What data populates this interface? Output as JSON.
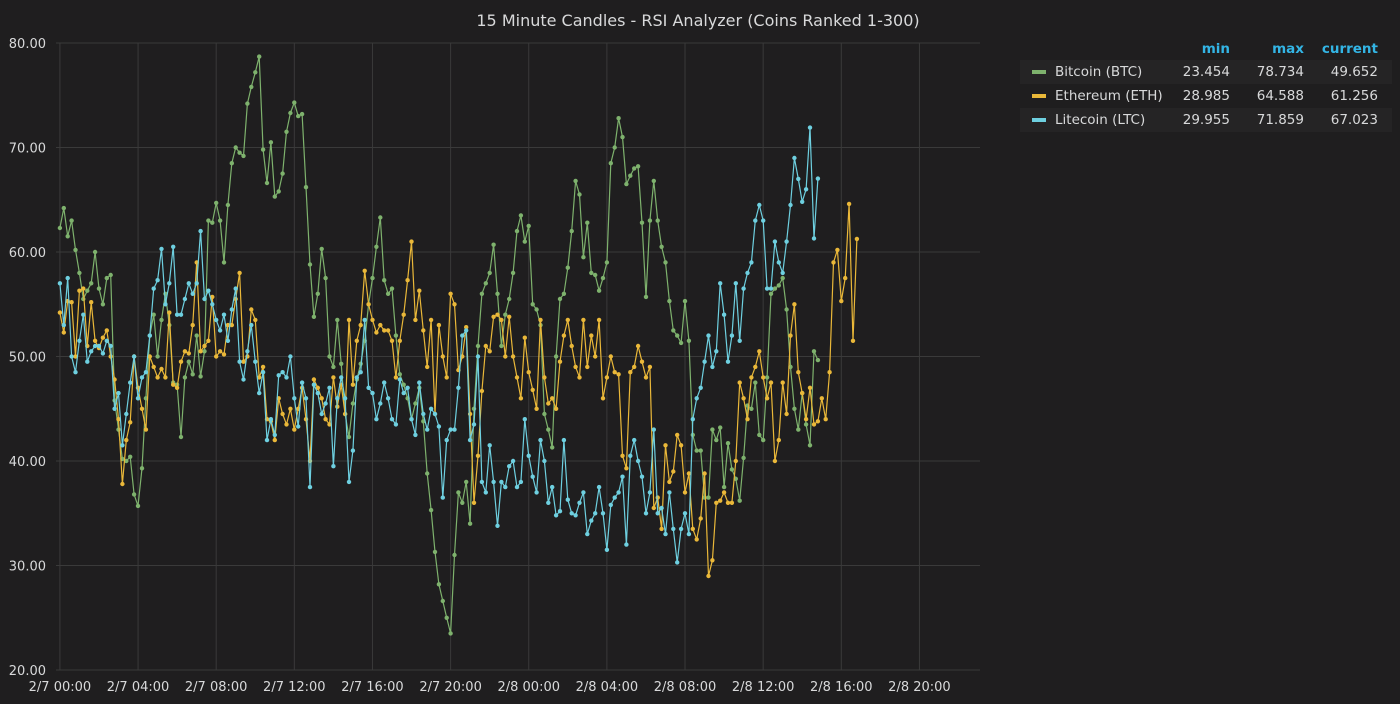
{
  "chart_data": {
    "type": "line",
    "title": "15 Minute Candles - RSI Analyzer (Coins Ranked 1-300)",
    "xlabel": "",
    "ylabel": "",
    "ylim": [
      20,
      80
    ],
    "y_ticks": [
      "20.00",
      "30.00",
      "40.00",
      "50.00",
      "60.00",
      "70.00",
      "80.00"
    ],
    "y_tick_values": [
      20,
      30,
      40,
      50,
      60,
      70,
      80
    ],
    "x_range_hours": [
      -0.2,
      47.1
    ],
    "x_ticks": [
      "2/7 00:00",
      "2/7 04:00",
      "2/7 08:00",
      "2/7 12:00",
      "2/7 16:00",
      "2/7 20:00",
      "2/8 00:00",
      "2/8 04:00",
      "2/8 08:00",
      "2/8 12:00",
      "2/8 16:00",
      "2/8 20:00"
    ],
    "x_tick_hours": [
      0,
      4,
      8,
      12,
      16,
      20,
      24,
      28,
      32,
      36,
      40,
      44
    ],
    "x_step_hours": 0.2,
    "grid": true,
    "legend_position": "right",
    "legend_headers": {
      "min": "min",
      "max": "max",
      "current": "current"
    },
    "series": [
      {
        "name": "Bitcoin (BTC)",
        "color": "#7eb26d",
        "min": "23.454",
        "max": "78.734",
        "current": "49.652",
        "values": [
          62.3,
          64.2,
          61.5,
          63.0,
          60.2,
          58.0,
          55.5,
          56.3,
          57.0,
          60.0,
          56.5,
          55.0,
          57.5,
          57.8,
          45.8,
          43.0,
          40.2,
          40.0,
          40.4,
          36.8,
          35.7,
          39.3,
          46.0,
          52.0,
          54.0,
          50.0,
          53.5,
          56.0,
          53.0,
          47.5,
          47.3,
          42.3,
          48.0,
          49.5,
          48.3,
          52.0,
          48.1,
          50.5,
          63.0,
          62.8,
          64.7,
          63.0,
          59.0,
          64.5,
          68.5,
          70.0,
          69.5,
          69.2,
          74.2,
          75.8,
          77.2,
          78.7,
          69.8,
          66.6,
          70.5,
          65.3,
          65.8,
          67.5,
          71.5,
          73.3,
          74.3,
          73.0,
          73.2,
          66.2,
          58.8,
          53.8,
          56.0,
          60.3,
          57.5,
          50.0,
          49.0,
          53.5,
          49.3,
          44.5,
          42.3,
          45.5,
          47.8,
          49.3,
          51.5,
          55.0,
          57.5,
          60.5,
          63.3,
          57.3,
          56.0,
          56.5,
          52.0,
          48.3,
          47.3,
          46.0,
          44.0,
          45.5,
          47.0,
          43.8,
          38.8,
          35.3,
          31.3,
          28.2,
          26.6,
          25.0,
          23.5,
          31.0,
          37.0,
          36.0,
          38.0,
          34.0,
          45.0,
          51.0,
          56.0,
          57.0,
          58.0,
          60.7,
          56.0,
          51.0,
          54.0,
          55.5,
          58.0,
          62.0,
          63.5,
          61.0,
          62.5,
          55.0,
          54.5,
          53.0,
          44.5,
          43.0,
          41.3,
          50.0,
          55.5,
          56.0,
          58.5,
          62.0,
          66.8,
          65.5,
          59.5,
          62.8,
          58.0,
          57.8,
          56.3,
          57.5,
          59.0,
          68.5,
          70.0,
          72.8,
          71.0,
          66.5,
          67.3,
          68.0,
          68.2,
          62.8,
          55.7,
          63.0,
          66.8,
          63.0,
          60.5,
          59.0,
          55.3,
          52.5,
          52.0,
          51.3,
          55.3,
          51.5,
          42.5,
          41.0,
          41.0,
          36.5,
          36.5,
          43.0,
          42.0,
          43.2,
          37.5,
          41.7,
          39.2,
          38.3,
          36.2,
          40.3,
          45.3,
          45.0,
          47.5,
          42.5,
          42.0,
          48.0,
          56.0,
          56.5,
          56.8,
          57.5,
          54.5,
          49.0,
          45.0,
          43.0,
          46.5,
          43.5,
          41.5,
          50.5,
          49.652
        ],
        "points": [
          [
            0,
            62.3
          ],
          [
            0.2,
            64.2
          ],
          [
            0.4,
            61.5
          ],
          [
            0.6,
            63.0
          ],
          [
            0.8,
            60.2
          ]
        ]
      },
      {
        "name": "Ethereum (ETH)",
        "color": "#eab839",
        "min": "28.985",
        "max": "64.588",
        "current": "61.256",
        "values": [
          54.2,
          52.3,
          55.3,
          55.2,
          50.0,
          56.3,
          56.5,
          51.0,
          55.2,
          51.5,
          50.8,
          51.8,
          52.5,
          50.0,
          47.8,
          44.0,
          37.8,
          42.0,
          43.7,
          50.0,
          47.0,
          45.0,
          43.0,
          50.0,
          49.0,
          48.0,
          48.8,
          48.0,
          54.2,
          47.3,
          47.0,
          49.5,
          50.5,
          50.3,
          53.0,
          59.0,
          50.5,
          51.0,
          51.5,
          55.7,
          50.0,
          50.5,
          50.2,
          53.0,
          53.0,
          55.5,
          58.0,
          49.5,
          50.0,
          54.5,
          53.5,
          48.0,
          49.0,
          44.0,
          43.8,
          42.0,
          46.0,
          44.5,
          43.5,
          45.0,
          43.0,
          45.0,
          47.0,
          44.0,
          40.0,
          47.8,
          47.0,
          46.0,
          44.0,
          43.5,
          48.0,
          45.2,
          47.3,
          44.5,
          53.5,
          47.3,
          51.5,
          53.0,
          58.2,
          55.0,
          53.5,
          52.3,
          53.0,
          52.5,
          52.5,
          51.5,
          48.0,
          51.5,
          54.0,
          57.3,
          61.0,
          53.5,
          56.3,
          52.5,
          49.0,
          53.5,
          44.5,
          53.0,
          50.0,
          48.0,
          56.0,
          55.0,
          48.7,
          50.0,
          52.8,
          44.5,
          36.0,
          40.5,
          46.7,
          51.0,
          50.5,
          53.8,
          54.0,
          53.5,
          50.0,
          53.8,
          50.0,
          48.0,
          46.0,
          51.8,
          48.5,
          46.8,
          45.0,
          53.5,
          48.0,
          45.5,
          46.0,
          45.0,
          49.5,
          52.0,
          53.5,
          51.0,
          49.0,
          48.0,
          53.5,
          49.0,
          52.0,
          50.0,
          53.5,
          46.0,
          48.0,
          50.0,
          48.5,
          48.3,
          40.5,
          39.3,
          48.5,
          49.0,
          51.0,
          49.5,
          48.0,
          49.0,
          35.5,
          36.5,
          33.5,
          41.5,
          38.0,
          39.0,
          42.5,
          41.5,
          37.0,
          38.8,
          33.5,
          32.5,
          34.5,
          38.8,
          29.0,
          30.5,
          36.0,
          36.2,
          37.0,
          36.0,
          36.0,
          40.0,
          47.5,
          46.0,
          44.0,
          48.0,
          49.0,
          50.5,
          48.0,
          46.0,
          47.5,
          40.0,
          42.0,
          47.5,
          44.5,
          52.0,
          55.0,
          48.5,
          46.5,
          44.0,
          47.0,
          43.5,
          43.8,
          46.0,
          44.0,
          48.5,
          59.0,
          60.2,
          55.3,
          57.5,
          64.6,
          51.5,
          61.256
        ],
        "points": [
          [
            0,
            54.2
          ],
          [
            0.2,
            52.3
          ],
          [
            0.4,
            55.3
          ],
          [
            0.6,
            55.2
          ],
          [
            0.8,
            50.0
          ]
        ]
      },
      {
        "name": "Litecoin (LTC)",
        "color": "#6ed0e0",
        "min": "29.955",
        "max": "71.859",
        "current": "67.023",
        "values": [
          57.0,
          53.0,
          57.5,
          50.0,
          48.5,
          51.5,
          54.0,
          49.5,
          50.5,
          51.0,
          51.0,
          50.3,
          51.5,
          51.0,
          45.0,
          46.5,
          41.5,
          44.5,
          47.5,
          50.0,
          46.0,
          48.0,
          48.5,
          52.0,
          56.5,
          57.3,
          60.3,
          55.0,
          57.0,
          60.5,
          54.0,
          54.0,
          55.5,
          57.0,
          56.0,
          57.0,
          62.0,
          55.5,
          56.3,
          55.0,
          53.5,
          52.5,
          54.0,
          51.5,
          54.5,
          56.5,
          49.5,
          47.8,
          50.5,
          53.0,
          49.5,
          46.5,
          48.5,
          42.0,
          44.0,
          42.5,
          48.2,
          48.5,
          48.0,
          50.0,
          46.0,
          43.3,
          47.5,
          46.0,
          37.5,
          47.3,
          46.5,
          44.5,
          45.5,
          47.0,
          39.5,
          46.0,
          48.0,
          46.0,
          38.0,
          41.0,
          48.0,
          48.5,
          53.5,
          47.0,
          46.5,
          44.0,
          45.5,
          47.5,
          46.0,
          44.0,
          43.5,
          47.8,
          46.5,
          47.0,
          44.0,
          42.5,
          47.5,
          44.5,
          43.0,
          45.0,
          44.5,
          43.3,
          36.5,
          42.0,
          43.0,
          43.0,
          47.0,
          52.0,
          52.5,
          42.0,
          43.5,
          50.0,
          38.0,
          37.0,
          41.5,
          38.0,
          33.8,
          38.0,
          37.5,
          39.5,
          40.0,
          37.5,
          38.0,
          44.0,
          40.5,
          38.5,
          37.0,
          42.0,
          40.0,
          36.0,
          37.5,
          34.8,
          35.2,
          42.0,
          36.3,
          35.0,
          34.8,
          36.0,
          37.0,
          33.0,
          34.3,
          35.0,
          37.5,
          35.0,
          31.5,
          35.8,
          36.5,
          37.0,
          38.5,
          32.0,
          40.5,
          42.0,
          40.0,
          38.5,
          35.0,
          37.0,
          43.0,
          35.0,
          35.5,
          33.0,
          37.0,
          33.5,
          30.3,
          33.5,
          35.0,
          33.0,
          44.0,
          46.0,
          47.0,
          49.5,
          52.0,
          49.0,
          50.5,
          57.0,
          54.0,
          49.5,
          52.0,
          57.0,
          51.5,
          56.5,
          58.0,
          59.0,
          63.0,
          64.5,
          63.0,
          56.5,
          56.5,
          61.0,
          59.0,
          58.0,
          61.0,
          64.5,
          69.0,
          67.0,
          64.8,
          66.0,
          71.9,
          61.3,
          67.023
        ],
        "points": [
          [
            0,
            57.0
          ],
          [
            0.2,
            53.0
          ],
          [
            0.4,
            57.5
          ],
          [
            0.6,
            50.0
          ],
          [
            0.8,
            48.5
          ]
        ]
      }
    ]
  }
}
